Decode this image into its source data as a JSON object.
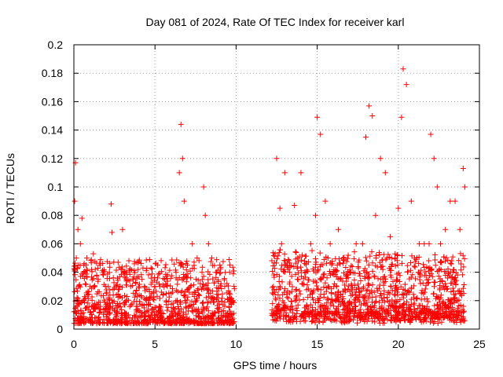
{
  "chart_data": {
    "type": "scatter",
    "title": "Day 081 of 2024, Rate Of TEC Index for receiver karl",
    "xlabel": "GPS time / hours",
    "ylabel": "ROTI / TECUs",
    "xlim": [
      0,
      25
    ],
    "ylim": [
      0,
      0.2
    ],
    "xticks": [
      0,
      5,
      10,
      15,
      20,
      25
    ],
    "xtick_labels": [
      "0",
      "5",
      "10",
      "15",
      "20",
      "25"
    ],
    "yticks": [
      0,
      0.02,
      0.04,
      0.06,
      0.08,
      0.1,
      0.12,
      0.14,
      0.16,
      0.18,
      0.2
    ],
    "ytick_labels": [
      "0",
      "0.02",
      "0.04",
      "0.06",
      "0.08",
      "0.1",
      "0.12",
      "0.14",
      "0.16",
      "0.18",
      "0.2"
    ],
    "grid": true,
    "marker": "+",
    "marker_color": "#ff0000",
    "data_gap_hours": [
      9.9,
      12.2
    ],
    "series": [
      {
        "name": "ROTI",
        "x": [
          0.05,
          0.1,
          0.15,
          0.25,
          0.3,
          0.4,
          0.5,
          0.6,
          0.8,
          1.0,
          1.2,
          1.5,
          1.8,
          2.0,
          2.3,
          2.35,
          2.6,
          3.0,
          3.2,
          3.5,
          3.8,
          4.0,
          4.2,
          4.5,
          4.8,
          5.0,
          5.3,
          5.6,
          6.0,
          6.3,
          6.5,
          6.6,
          6.7,
          6.8,
          7.0,
          7.3,
          7.6,
          7.9,
          8.0,
          8.1,
          8.3,
          8.5,
          8.8,
          9.0,
          9.3,
          9.6,
          9.8,
          12.3,
          12.5,
          12.7,
          12.8,
          13.0,
          13.3,
          13.6,
          13.8,
          14.0,
          14.3,
          14.6,
          14.9,
          15.0,
          15.2,
          15.5,
          15.8,
          16.0,
          16.3,
          16.6,
          17.0,
          17.4,
          17.8,
          18.0,
          18.2,
          18.4,
          18.6,
          18.9,
          19.2,
          19.5,
          19.8,
          20.0,
          20.2,
          20.3,
          20.5,
          20.8,
          21.0,
          21.3,
          21.6,
          21.9,
          22.0,
          22.2,
          22.4,
          22.6,
          22.9,
          23.2,
          23.5,
          23.8,
          24.0,
          24.1
        ],
        "y": [
          0.09,
          0.117,
          0.05,
          0.07,
          0.03,
          0.06,
          0.078,
          0.04,
          0.05,
          0.03,
          0.053,
          0.035,
          0.04,
          0.025,
          0.088,
          0.068,
          0.03,
          0.07,
          0.04,
          0.03,
          0.025,
          0.03,
          0.035,
          0.028,
          0.025,
          0.03,
          0.03,
          0.035,
          0.025,
          0.04,
          0.11,
          0.144,
          0.12,
          0.09,
          0.045,
          0.06,
          0.05,
          0.04,
          0.1,
          0.08,
          0.06,
          0.05,
          0.04,
          0.045,
          0.03,
          0.04,
          0.02,
          0.03,
          0.12,
          0.085,
          0.06,
          0.11,
          0.04,
          0.087,
          0.05,
          0.11,
          0.04,
          0.06,
          0.08,
          0.149,
          0.137,
          0.09,
          0.06,
          0.04,
          0.07,
          0.05,
          0.04,
          0.06,
          0.06,
          0.135,
          0.157,
          0.15,
          0.08,
          0.12,
          0.11,
          0.065,
          0.05,
          0.085,
          0.149,
          0.183,
          0.172,
          0.09,
          0.05,
          0.06,
          0.06,
          0.06,
          0.137,
          0.12,
          0.1,
          0.06,
          0.07,
          0.09,
          0.09,
          0.07,
          0.113,
          0.1
        ]
      }
    ]
  }
}
